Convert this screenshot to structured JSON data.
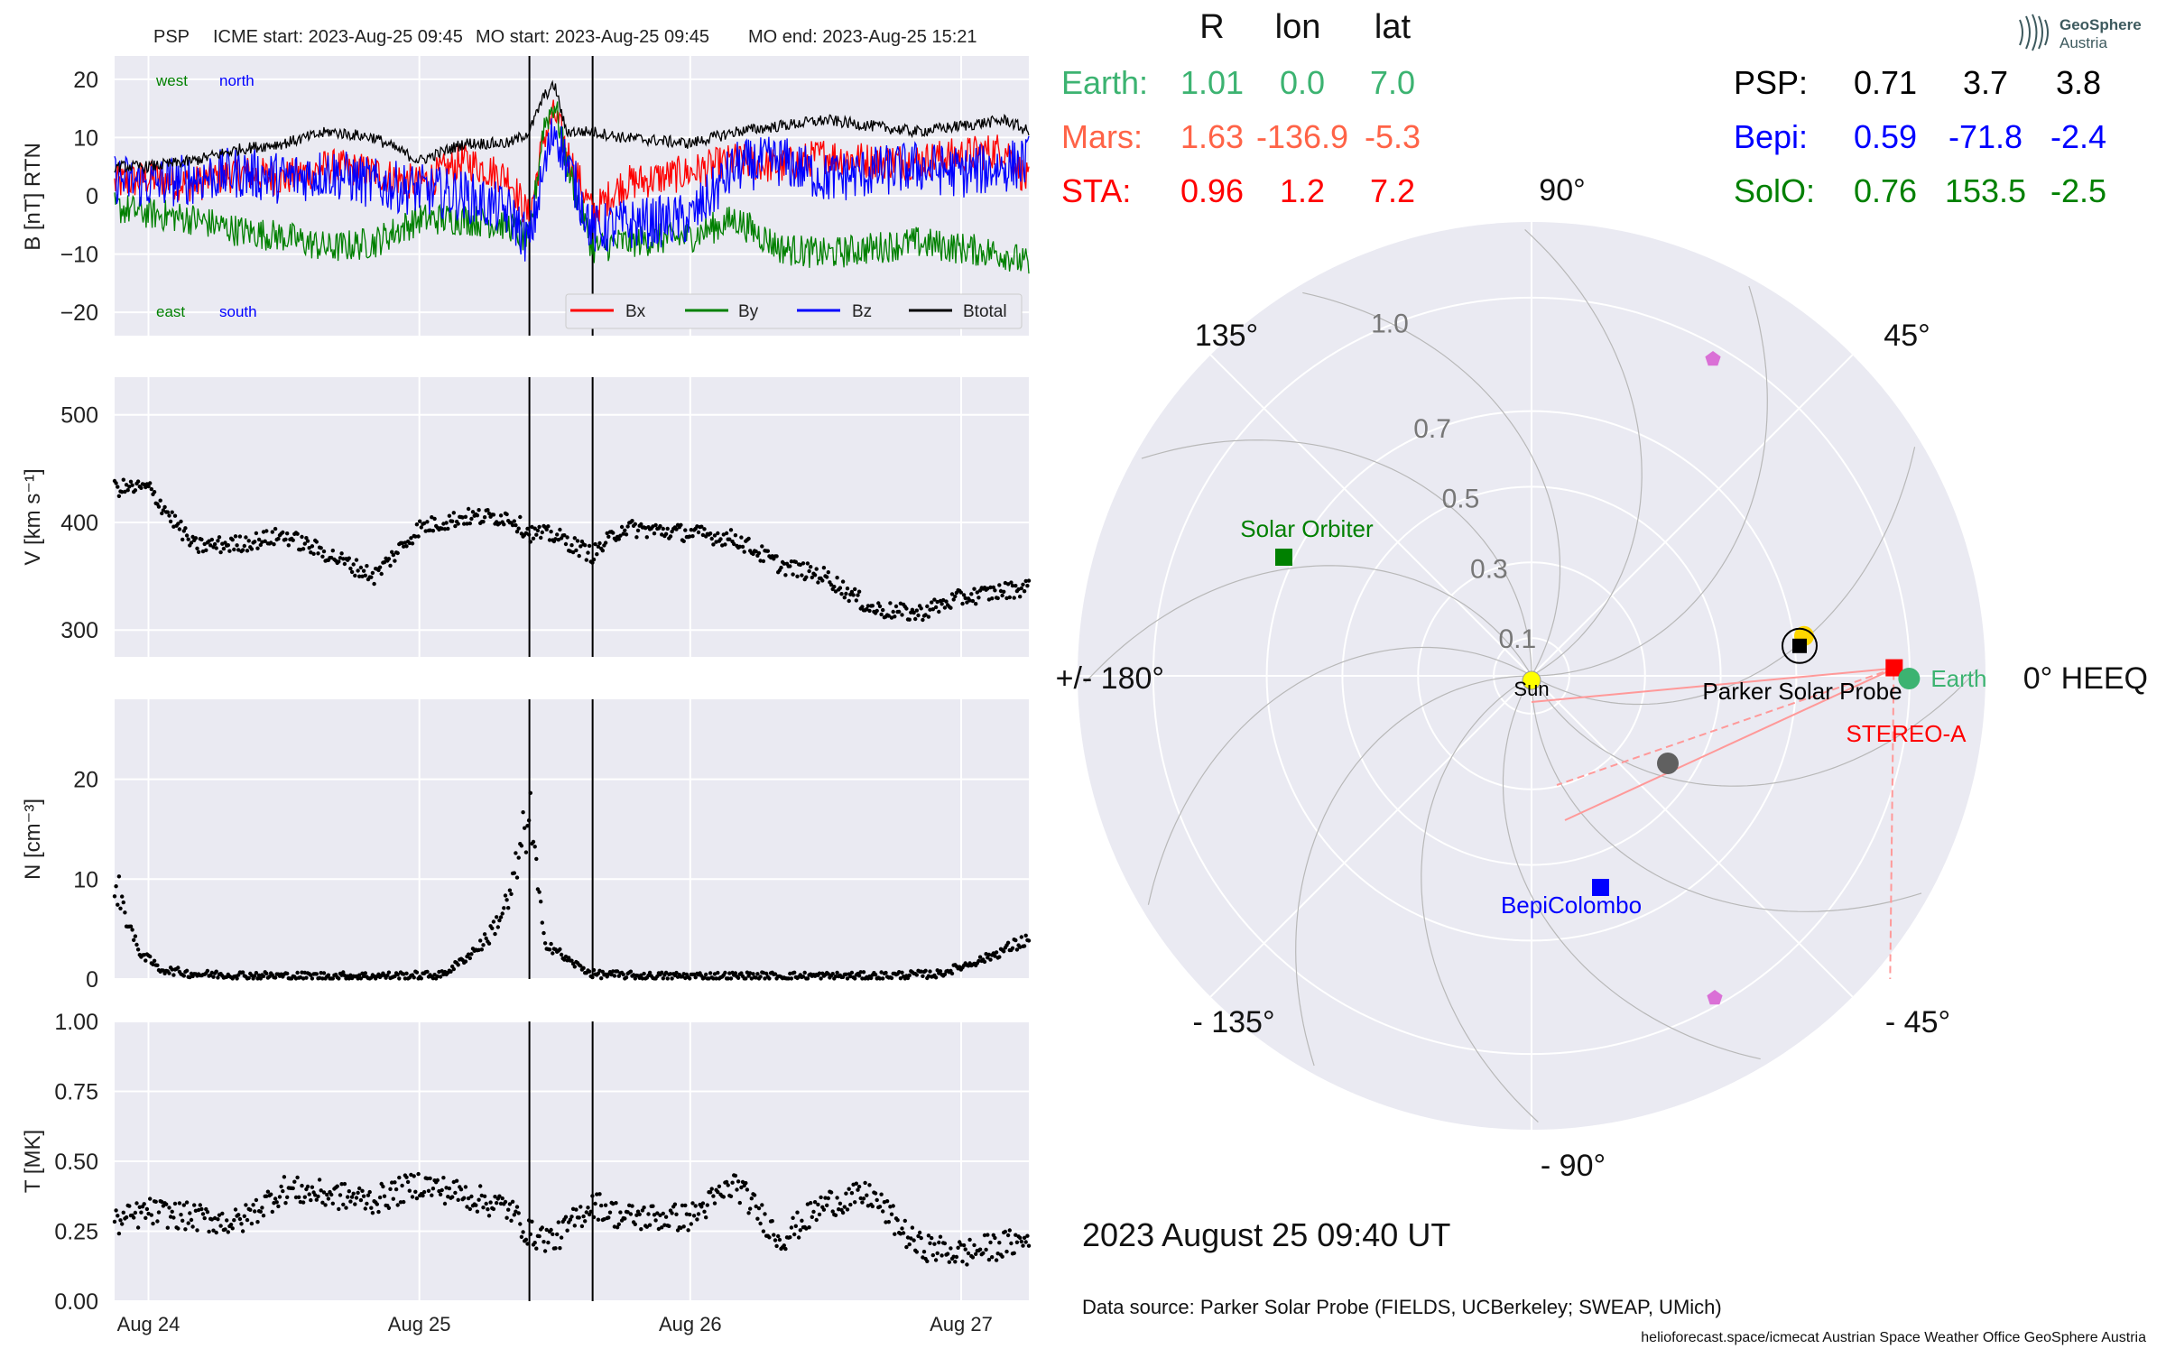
{
  "header": {
    "psp": "PSP",
    "icme_start": "ICME start: 2023-Aug-25 09:45",
    "mo_start": "MO start: 2023-Aug-25 09:45",
    "mo_end": "MO end: 2023-Aug-25 15:21"
  },
  "panels": {
    "b": {
      "ylabel": "B [nT] RTN",
      "west": "west",
      "north": "north",
      "east": "east",
      "south": "south"
    },
    "v": {
      "ylabel": "V [km s⁻¹]"
    },
    "n": {
      "ylabel": "N [cm⁻³]"
    },
    "t": {
      "ylabel": "T [MK]"
    }
  },
  "table_headers": {
    "r": "R",
    "lon": "lon",
    "lat": "lat"
  },
  "positions": [
    {
      "name": "Earth:",
      "r": "1.01",
      "lon": "0.0",
      "lat": "7.0",
      "color": "#3cb371"
    },
    {
      "name": "Mars:",
      "r": "1.63",
      "lon": "-136.9",
      "lat": "-5.3",
      "color": "#ff6347"
    },
    {
      "name": "STA:",
      "r": "0.96",
      "lon": "1.2",
      "lat": "7.2",
      "color": "#ff0000"
    },
    {
      "name": "PSP:",
      "r": "0.71",
      "lon": "3.7",
      "lat": "3.8",
      "color": "#000000"
    },
    {
      "name": "Bepi:",
      "r": "0.59",
      "lon": "-71.8",
      "lat": "-2.4",
      "color": "#0000ff"
    },
    {
      "name": "SolO:",
      "r": "0.76",
      "lon": "153.5",
      "lat": "-2.5",
      "color": "#008000"
    }
  ],
  "logo": {
    "line1": "GeoSphere",
    "line2": "Austria"
  },
  "polar": {
    "angle_labels": [
      "90°",
      "45°",
      "0° HEEQ",
      "- 45°",
      "- 90°",
      "- 135°",
      "+/- 180°",
      "135°"
    ],
    "radial_labels": [
      "0.1",
      "0.3",
      "0.5",
      "0.7",
      "1.0"
    ],
    "objects": {
      "sun": "Sun",
      "psp": "Parker Solar Probe",
      "sta": "STEREO-A",
      "earth": "Earth",
      "solo": "Solar Orbiter",
      "bepi": "BepiColombo"
    }
  },
  "footer": {
    "datetime": "2023 August 25  09:40 UT",
    "source": "Data source: Parker Solar Probe (FIELDS, UCBerkeley; SWEAP, UMich)",
    "credits": "helioforecast.space/icmecat   Austrian Space Weather Office   GeoSphere Austria"
  },
  "colors": {
    "bx": "#ff0000",
    "by": "#008000",
    "bz": "#0000ff",
    "btotal": "#000000",
    "panel_bg": "#eaeaf2"
  },
  "chart_data": [
    {
      "type": "line",
      "title": "",
      "ylabel": "B [nT] RTN",
      "x_range": [
        "2023-08-23 21:00",
        "2023-08-27 06:00"
      ],
      "x_ticks": [
        "Aug 24",
        "Aug 25",
        "Aug 26",
        "Aug 27"
      ],
      "ylim": [
        -24,
        24
      ],
      "y_ticks": [
        -20,
        -10,
        0,
        10,
        20
      ],
      "legend": "bottom-right",
      "grid": true,
      "event_lines": [
        "2023-08-25 09:45",
        "2023-08-25 15:21"
      ],
      "x": [
        "2023-08-23 21:00",
        "2023-08-24 00:00",
        "2023-08-24 04:00",
        "2023-08-24 08:00",
        "2023-08-24 12:00",
        "2023-08-24 16:00",
        "2023-08-24 20:00",
        "2023-08-25 00:00",
        "2023-08-25 04:00",
        "2023-08-25 08:00",
        "2023-08-25 09:45",
        "2023-08-25 11:00",
        "2023-08-25 12:00",
        "2023-08-25 13:00",
        "2023-08-25 15:21",
        "2023-08-25 18:00",
        "2023-08-26 00:00",
        "2023-08-26 04:00",
        "2023-08-26 08:00",
        "2023-08-26 12:00",
        "2023-08-26 16:00",
        "2023-08-26 20:00",
        "2023-08-27 00:00",
        "2023-08-27 04:00",
        "2023-08-27 06:00"
      ],
      "series": [
        {
          "name": "Bx",
          "values": [
            2,
            3,
            2,
            4,
            3,
            5,
            4,
            2,
            6,
            3,
            -4,
            10,
            14,
            8,
            -3,
            2,
            4,
            6,
            5,
            7,
            6,
            6,
            7,
            8,
            2
          ]
        },
        {
          "name": "By",
          "values": [
            -2,
            -3,
            -4,
            -6,
            -7,
            -9,
            -8,
            -4,
            -4,
            -5,
            -8,
            12,
            16,
            6,
            -9,
            -8,
            -7,
            -4,
            -9,
            -10,
            -9,
            -8,
            -9,
            -10,
            -12
          ]
        },
        {
          "name": "Bz",
          "values": [
            3,
            2,
            3,
            4,
            3,
            4,
            2,
            1,
            0,
            -3,
            -8,
            4,
            12,
            6,
            -6,
            -5,
            -4,
            5,
            6,
            3,
            4,
            5,
            4,
            5,
            6
          ]
        },
        {
          "name": "Btotal",
          "values": [
            5,
            5,
            6,
            8,
            9,
            11,
            10,
            6,
            9,
            9,
            11,
            17,
            19,
            11,
            11,
            10,
            9,
            11,
            12,
            13,
            12,
            11,
            12,
            13,
            11
          ]
        }
      ]
    },
    {
      "type": "scatter",
      "ylabel": "V [km s⁻¹]",
      "ylim": [
        275,
        535
      ],
      "y_ticks": [
        300,
        400,
        500
      ],
      "x": [
        "2023-08-23 21:00",
        "2023-08-24 00:00",
        "2023-08-24 04:00",
        "2023-08-24 08:00",
        "2023-08-24 12:00",
        "2023-08-24 16:00",
        "2023-08-24 20:00",
        "2023-08-25 00:00",
        "2023-08-25 04:00",
        "2023-08-25 08:00",
        "2023-08-25 09:45",
        "2023-08-25 12:00",
        "2023-08-25 15:21",
        "2023-08-25 18:00",
        "2023-08-26 00:00",
        "2023-08-26 04:00",
        "2023-08-26 08:00",
        "2023-08-26 12:00",
        "2023-08-26 16:00",
        "2023-08-26 20:00",
        "2023-08-27 00:00",
        "2023-08-27 06:00"
      ],
      "values": [
        432,
        432,
        378,
        380,
        388,
        370,
        350,
        395,
        405,
        405,
        390,
        388,
        370,
        395,
        390,
        385,
        360,
        350,
        320,
        315,
        330,
        340
      ]
    },
    {
      "type": "scatter",
      "ylabel": "N [cm⁻³]",
      "ylim": [
        0,
        28
      ],
      "y_ticks": [
        0,
        10,
        20
      ],
      "x": [
        "2023-08-23 21:00",
        "2023-08-23 23:00",
        "2023-08-24 01:00",
        "2023-08-24 04:00",
        "2023-08-24 12:00",
        "2023-08-24 20:00",
        "2023-08-25 02:00",
        "2023-08-25 04:00",
        "2023-08-25 06:00",
        "2023-08-25 08:00",
        "2023-08-25 09:00",
        "2023-08-25 09:45",
        "2023-08-25 11:00",
        "2023-08-25 13:00",
        "2023-08-25 15:21",
        "2023-08-25 20:00",
        "2023-08-26 08:00",
        "2023-08-26 16:00",
        "2023-08-26 22:00",
        "2023-08-27 02:00",
        "2023-08-27 06:00"
      ],
      "values": [
        10,
        3,
        1,
        0.5,
        0.3,
        0.3,
        0.4,
        2,
        4,
        8,
        13,
        17,
        4,
        2,
        0.5,
        0.3,
        0.3,
        0.3,
        0.5,
        2,
        4
      ]
    },
    {
      "type": "scatter",
      "ylabel": "T [MK]",
      "ylim": [
        0,
        1.0
      ],
      "y_ticks": [
        0.0,
        0.25,
        0.5,
        0.75,
        1.0
      ],
      "x": [
        "2023-08-23 21:00",
        "2023-08-24 00:00",
        "2023-08-24 04:00",
        "2023-08-24 08:00",
        "2023-08-24 12:00",
        "2023-08-24 16:00",
        "2023-08-24 20:00",
        "2023-08-25 00:00",
        "2023-08-25 04:00",
        "2023-08-25 08:00",
        "2023-08-25 09:45",
        "2023-08-25 12:00",
        "2023-08-25 15:21",
        "2023-08-25 18:00",
        "2023-08-26 00:00",
        "2023-08-26 04:00",
        "2023-08-26 08:00",
        "2023-08-26 12:00",
        "2023-08-26 16:00",
        "2023-08-26 20:00",
        "2023-08-27 00:00",
        "2023-08-27 06:00"
      ],
      "values": [
        0.28,
        0.32,
        0.3,
        0.28,
        0.4,
        0.38,
        0.36,
        0.42,
        0.38,
        0.33,
        0.24,
        0.22,
        0.35,
        0.3,
        0.3,
        0.42,
        0.22,
        0.35,
        0.38,
        0.2,
        0.17,
        0.22
      ]
    },
    {
      "type": "scatter",
      "polar": true,
      "rticks": [
        0.1,
        0.3,
        0.5,
        0.7,
        1.0
      ],
      "points": [
        {
          "name": "Sun",
          "r": 0.0,
          "lon": 0.0,
          "color": "#ffff00"
        },
        {
          "name": "Parker Solar Probe",
          "r": 0.71,
          "lon": 3.7,
          "color": "#000000"
        },
        {
          "name": "STEREO-A",
          "r": 0.96,
          "lon": 1.2,
          "color": "#ff0000"
        },
        {
          "name": "Earth",
          "r": 1.01,
          "lon": 0.0,
          "color": "#3cb371"
        },
        {
          "name": "BepiColombo",
          "r": 0.59,
          "lon": -71.8,
          "color": "#0000ff"
        },
        {
          "name": "Solar Orbiter",
          "r": 0.76,
          "lon": 153.5,
          "color": "#008000"
        }
      ]
    }
  ]
}
